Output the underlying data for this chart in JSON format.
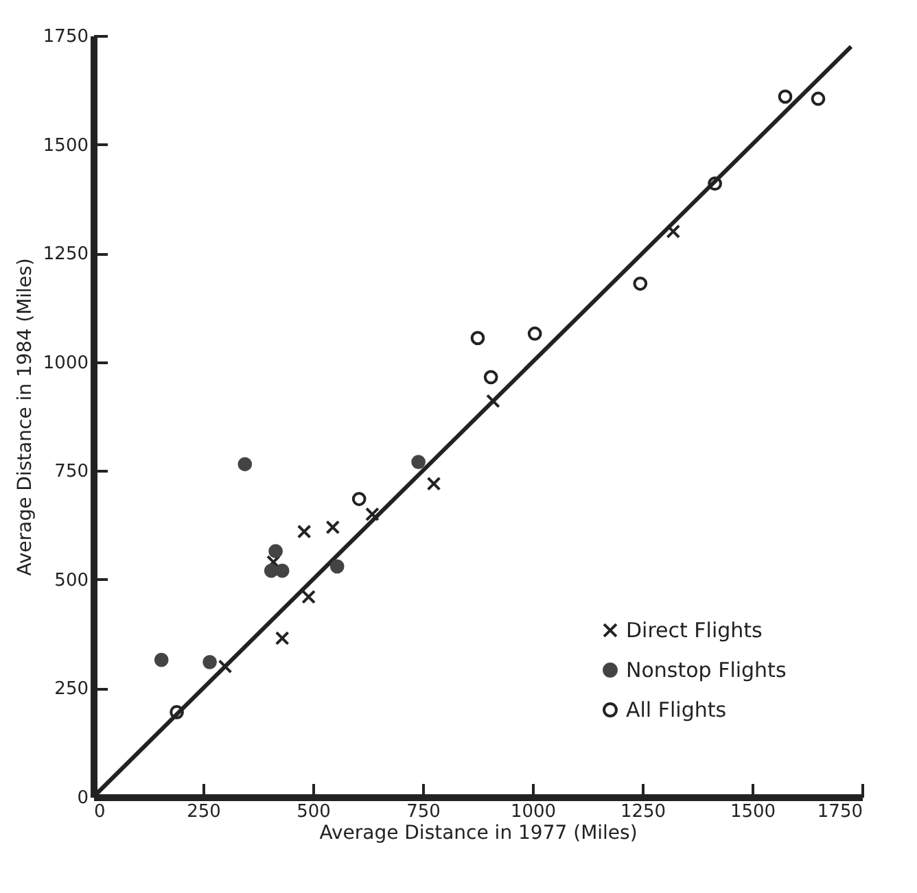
{
  "chart_data": {
    "type": "scatter",
    "xlabel": "Average Distance in 1977 (Miles)",
    "ylabel": "Average Distance in 1984 (Miles)",
    "xlim": [
      0,
      1750
    ],
    "ylim": [
      0,
      1750
    ],
    "xticks": [
      0,
      250,
      500,
      750,
      1000,
      1250,
      1500,
      1750
    ],
    "yticks": [
      0,
      250,
      500,
      750,
      1000,
      1250,
      1500,
      1750
    ],
    "grid": false,
    "legend": "bottom right",
    "series": [
      {
        "type": "line",
        "color": "#222222",
        "x": [
          0,
          1725
        ],
        "values": [
          0,
          1725
        ]
      },
      {
        "name": "Direct Flights",
        "marker": "cross",
        "color": "#222222",
        "x": [
          480,
          545,
          490,
          430,
          410,
          775,
          635,
          300,
          910,
          1320
        ],
        "values": [
          610,
          620,
          460,
          365,
          540,
          720,
          650,
          300,
          910,
          1300
        ]
      },
      {
        "name": "Nonstop Flights",
        "marker": "circle",
        "color": "#444444",
        "x": [
          345,
          415,
          405,
          430,
          555,
          155,
          265,
          740
        ],
        "values": [
          765,
          565,
          520,
          520,
          530,
          315,
          310,
          770
        ]
      },
      {
        "name": "All Flights",
        "marker": "circle",
        "color": "#222222",
        "x": [
          190,
          605,
          875,
          1005,
          905,
          1245,
          1415,
          1575,
          1650
        ],
        "values": [
          195,
          685,
          1055,
          1065,
          965,
          1180,
          1410,
          1610,
          1605
        ]
      }
    ]
  }
}
